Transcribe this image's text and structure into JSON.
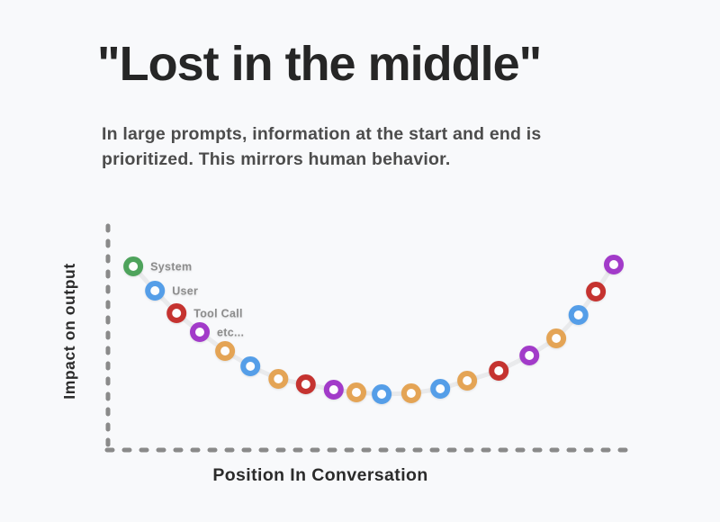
{
  "title": "\"Lost in the middle\"",
  "subtitle": {
    "line1": "In large prompts, information at the start and end is",
    "line2": "prioritized. This mirrors human behavior."
  },
  "chart_data": {
    "type": "scatter",
    "title": "\"Lost in the middle\"",
    "xlabel": "Position In Conversation",
    "ylabel": "Impact on output",
    "curve_shape": "u-shaped",
    "grid": "off",
    "axes_style": "dashed, no ticks, no numeric scale",
    "x_range": [
      0,
      100
    ],
    "y_range": [
      0,
      100
    ],
    "line_color": "#e9eaec",
    "axis_color": "#8a8a8a",
    "point_label_color": "#8c8c8c",
    "hole_color": "#fdfdfe",
    "colors": {
      "green": "#4ea35c",
      "blue": "#559ee8",
      "red": "#c53330",
      "purple": "#a23bc9",
      "orange": "#e4a455"
    },
    "points": [
      {
        "x": 4.8,
        "y": 81.6,
        "color": "green",
        "label": "System"
      },
      {
        "x": 8.9,
        "y": 70.8,
        "color": "blue",
        "label": "User"
      },
      {
        "x": 13.0,
        "y": 60.8,
        "color": "red",
        "label": "Tool Call"
      },
      {
        "x": 17.4,
        "y": 52.4,
        "color": "purple",
        "label": "etc..."
      },
      {
        "x": 22.2,
        "y": 44.0,
        "color": "orange",
        "label": ""
      },
      {
        "x": 27.0,
        "y": 37.2,
        "color": "blue",
        "label": ""
      },
      {
        "x": 32.3,
        "y": 31.6,
        "color": "orange",
        "label": ""
      },
      {
        "x": 37.5,
        "y": 29.2,
        "color": "red",
        "label": ""
      },
      {
        "x": 42.8,
        "y": 26.8,
        "color": "purple",
        "label": ""
      },
      {
        "x": 47.1,
        "y": 25.6,
        "color": "orange",
        "label": ""
      },
      {
        "x": 51.9,
        "y": 24.8,
        "color": "blue",
        "label": ""
      },
      {
        "x": 57.5,
        "y": 25.2,
        "color": "orange",
        "label": ""
      },
      {
        "x": 63.0,
        "y": 27.2,
        "color": "blue",
        "label": ""
      },
      {
        "x": 68.1,
        "y": 30.8,
        "color": "orange",
        "label": ""
      },
      {
        "x": 74.1,
        "y": 35.2,
        "color": "red",
        "label": ""
      },
      {
        "x": 79.9,
        "y": 42.0,
        "color": "purple",
        "label": ""
      },
      {
        "x": 85.0,
        "y": 49.6,
        "color": "orange",
        "label": ""
      },
      {
        "x": 89.2,
        "y": 60.0,
        "color": "blue",
        "label": ""
      },
      {
        "x": 92.5,
        "y": 70.4,
        "color": "red",
        "label": ""
      },
      {
        "x": 95.9,
        "y": 82.4,
        "color": "purple",
        "label": ""
      }
    ]
  }
}
